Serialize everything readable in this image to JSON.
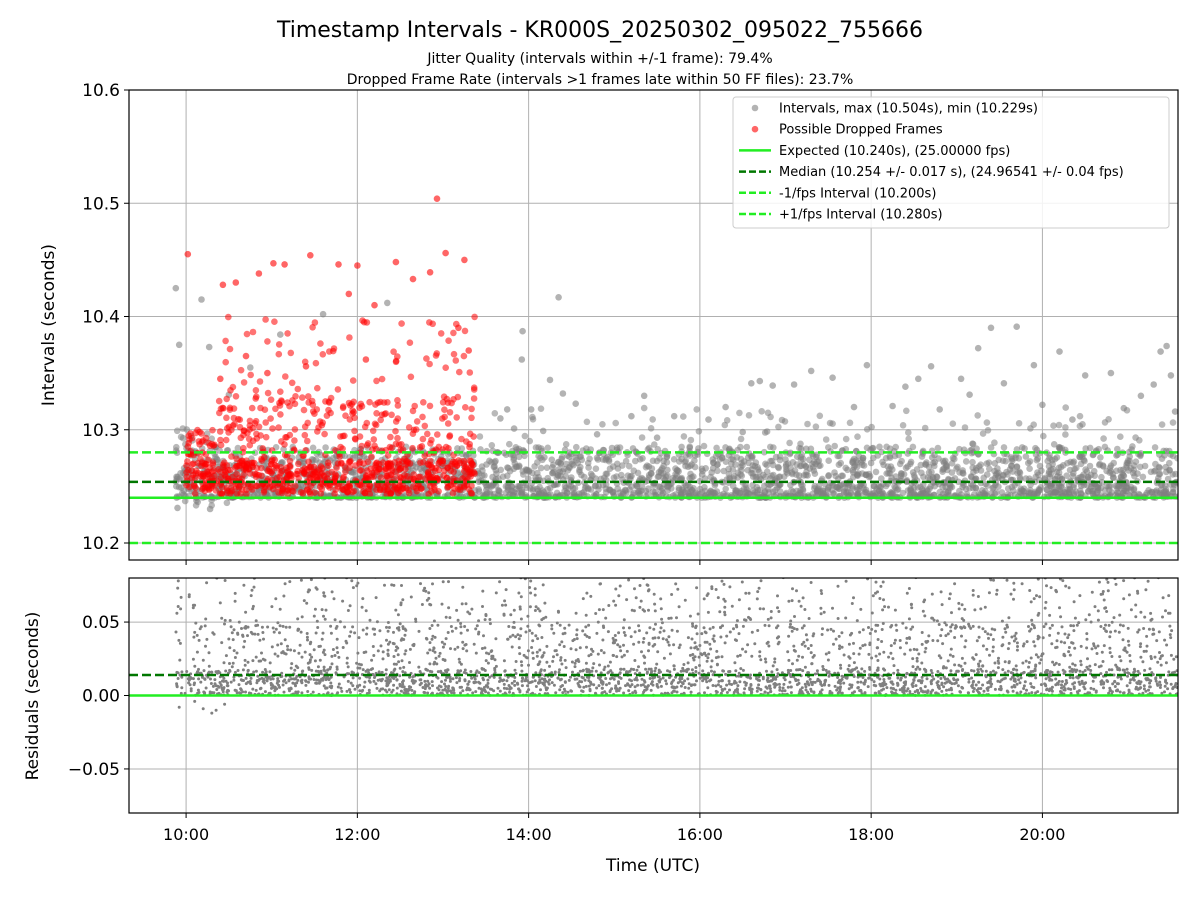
{
  "header": {
    "title": "Timestamp Intervals - KR000S_20250302_095022_755666",
    "subtitle_1": "Jitter Quality (intervals within +/-1 frame): 79.4%",
    "subtitle_2": "Dropped Frame Rate (intervals >1 frames late within 50 FF files): 23.7%"
  },
  "chart_data": [
    {
      "type": "scatter",
      "panel": "intervals",
      "ylabel": "Intervals (seconds)",
      "ylim": [
        10.185,
        10.6
      ],
      "xlim": [
        9.3333,
        21.5833
      ],
      "y_ticks": [
        10.2,
        10.3,
        10.4,
        10.5,
        10.6
      ],
      "y_tick_labels": [
        "10.2",
        "10.3",
        "10.4",
        "10.5",
        "10.6"
      ],
      "grid": true,
      "legend_position": "top-right",
      "legend": [
        {
          "label": "Intervals, max (10.504s), min (10.229s)",
          "kind": "marker",
          "color": "#808080"
        },
        {
          "label": "Possible Dropped Frames",
          "kind": "marker",
          "color": "#ff0000"
        },
        {
          "label": "Expected (10.240s), (25.00000 fps)",
          "kind": "line",
          "color": "#22ee22",
          "dash": "solid"
        },
        {
          "label": "Median (10.254 +/- 0.017 s), (24.96541 +/- 0.04 fps)",
          "kind": "line",
          "color": "#007700",
          "dash": "dashed"
        },
        {
          "label": "-1/fps Interval (10.200s)",
          "kind": "line",
          "color": "#22ee22",
          "dash": "dashed"
        },
        {
          "label": "+1/fps Interval (10.280s)",
          "kind": "line",
          "color": "#22ee22",
          "dash": "dashed"
        }
      ],
      "reference_lines": [
        {
          "name": "expected",
          "y": 10.24,
          "color": "#22ee22",
          "dash": "solid"
        },
        {
          "name": "median",
          "y": 10.254,
          "color": "#007700",
          "dash": "dashed"
        },
        {
          "name": "minus-1fps",
          "y": 10.2,
          "color": "#22ee22",
          "dash": "dashed"
        },
        {
          "name": "plus-1fps",
          "y": 10.28,
          "color": "#22ee22",
          "dash": "dashed"
        }
      ],
      "series": [
        {
          "name": "Intervals",
          "color": "#808080",
          "points": [
            [
              9.88,
              10.425
            ],
            [
              10.18,
              10.415
            ],
            [
              10.27,
              10.373
            ],
            [
              9.92,
              10.375
            ],
            [
              10.75,
              10.355
            ],
            [
              10.5,
              10.331
            ],
            [
              11.1,
              10.384
            ],
            [
              11.6,
              10.402
            ],
            [
              12.35,
              10.412
            ],
            [
              13.67,
              10.31
            ],
            [
              13.75,
              10.318
            ],
            [
              13.83,
              10.301
            ],
            [
              13.93,
              10.387
            ],
            [
              13.92,
              10.362
            ],
            [
              14.03,
              10.318
            ],
            [
              14.17,
              10.299
            ],
            [
              14.25,
              10.344
            ],
            [
              14.35,
              10.417
            ],
            [
              14.4,
              10.332
            ],
            [
              14.55,
              10.323
            ],
            [
              14.8,
              10.296
            ],
            [
              15.2,
              10.312
            ],
            [
              15.35,
              10.33
            ],
            [
              15.5,
              10.293
            ],
            [
              15.7,
              10.312
            ],
            [
              16.1,
              10.309
            ],
            [
              16.3,
              10.32
            ],
            [
              16.5,
              10.298
            ],
            [
              16.6,
              10.341
            ],
            [
              16.7,
              10.343
            ],
            [
              16.85,
              10.339
            ],
            [
              17.1,
              10.34
            ],
            [
              17.3,
              10.352
            ],
            [
              17.55,
              10.346
            ],
            [
              17.8,
              10.32
            ],
            [
              17.95,
              10.357
            ],
            [
              18.25,
              10.321
            ],
            [
              18.4,
              10.338
            ],
            [
              18.55,
              10.345
            ],
            [
              18.7,
              10.356
            ],
            [
              18.8,
              10.318
            ],
            [
              19.05,
              10.345
            ],
            [
              19.15,
              10.331
            ],
            [
              19.25,
              10.372
            ],
            [
              19.4,
              10.39
            ],
            [
              19.55,
              10.341
            ],
            [
              19.7,
              10.391
            ],
            [
              19.9,
              10.357
            ],
            [
              20.0,
              10.322
            ],
            [
              20.2,
              10.369
            ],
            [
              20.35,
              10.309
            ],
            [
              20.5,
              10.348
            ],
            [
              20.8,
              10.35
            ],
            [
              20.95,
              10.319
            ],
            [
              21.15,
              10.33
            ],
            [
              21.3,
              10.34
            ],
            [
              21.38,
              10.369
            ],
            [
              21.45,
              10.374
            ],
            [
              21.5,
              10.348
            ],
            [
              21.55,
              10.316
            ],
            [
              9.9,
              10.231
            ],
            [
              10.28,
              10.23
            ]
          ],
          "band": {
            "x_range": [
              9.88,
              21.5833
            ],
            "y_range": [
              10.24,
              10.285
            ],
            "note": "dense cloud of intervals"
          }
        },
        {
          "name": "Possible Dropped Frames",
          "color": "#ff0000",
          "points": [
            [
              10.02,
              10.455
            ],
            [
              10.43,
              10.428
            ],
            [
              10.58,
              10.43
            ],
            [
              10.85,
              10.438
            ],
            [
              11.02,
              10.447
            ],
            [
              11.15,
              10.446
            ],
            [
              11.45,
              10.454
            ],
            [
              11.78,
              10.446
            ],
            [
              11.9,
              10.42
            ],
            [
              12.0,
              10.445
            ],
            [
              12.2,
              10.41
            ],
            [
              12.45,
              10.448
            ],
            [
              12.65,
              10.433
            ],
            [
              12.85,
              10.439
            ],
            [
              12.93,
              10.504
            ],
            [
              13.03,
              10.456
            ],
            [
              13.25,
              10.45
            ],
            [
              13.18,
              10.39
            ],
            [
              13.3,
              10.37
            ],
            [
              12.1,
              10.362
            ],
            [
              11.4,
              10.356
            ],
            [
              10.95,
              10.35
            ],
            [
              10.7,
              10.365
            ],
            [
              10.4,
              10.345
            ]
          ],
          "band": {
            "x_range": [
              10.0,
              13.37
            ],
            "y_range": [
              10.243,
              10.33
            ],
            "note": "dense cloud of possible dropped frames"
          }
        }
      ]
    },
    {
      "type": "scatter",
      "panel": "residuals",
      "xlabel": "Time (UTC)",
      "ylabel": "Residuals (seconds)",
      "ylim": [
        -0.08,
        0.08
      ],
      "xlim": [
        9.3333,
        21.5833
      ],
      "y_ticks": [
        -0.05,
        0.0,
        0.05
      ],
      "y_tick_labels": [
        "−0.05",
        "0.00",
        "0.05"
      ],
      "x_ticks": [
        10,
        12,
        14,
        16,
        18,
        20
      ],
      "x_tick_labels": [
        "10:00",
        "12:00",
        "14:00",
        "16:00",
        "18:00",
        "20:00"
      ],
      "grid": true,
      "reference_lines": [
        {
          "name": "zero",
          "y": 0.0,
          "color": "#22ee22",
          "dash": "solid"
        },
        {
          "name": "median",
          "y": 0.014,
          "color": "#007700",
          "dash": "dashed"
        }
      ],
      "series": [
        {
          "name": "Residuals",
          "color": "#808080",
          "points": [
            [
              9.92,
              -0.008
            ],
            [
              10.1,
              -0.004
            ],
            [
              10.3,
              -0.012
            ],
            [
              10.45,
              -0.006
            ],
            [
              10.2,
              -0.009
            ],
            [
              10.35,
              -0.01
            ]
          ],
          "band": {
            "x_range": [
              9.88,
              21.5833
            ],
            "y_range": [
              0.0,
              0.08
            ],
            "note": "dense cloud of residuals, clipped at top"
          }
        }
      ]
    }
  ]
}
